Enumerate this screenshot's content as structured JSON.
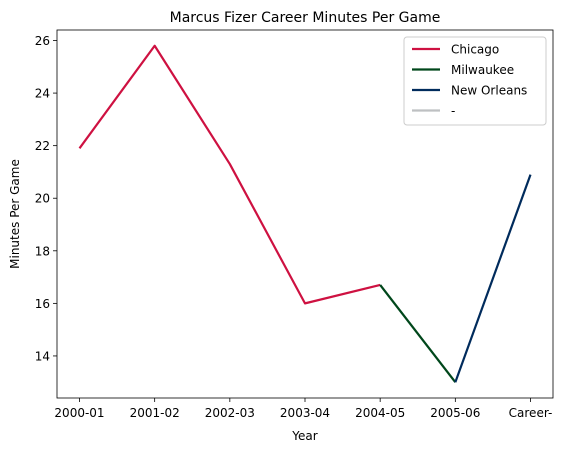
{
  "chart_data": {
    "type": "line",
    "title": "Marcus Fizer Career Minutes Per Game",
    "xlabel": "Year",
    "ylabel": "Minutes Per Game",
    "categories": [
      "2000-01",
      "2001-02",
      "2002-03",
      "2003-04",
      "2004-05",
      "2005-06",
      "Career-"
    ],
    "ylim": [
      12.4,
      26.4
    ],
    "yticks": [
      14,
      16,
      18,
      20,
      22,
      24,
      26
    ],
    "grid": false,
    "legend_position": "top-right",
    "series": [
      {
        "name": "Chicago",
        "color": "#CE1141",
        "points": [
          [
            0,
            21.9
          ],
          [
            1,
            25.8
          ],
          [
            2,
            21.3
          ],
          [
            3,
            16.0
          ],
          [
            4,
            16.7
          ]
        ]
      },
      {
        "name": "Milwaukee",
        "color": "#00471B",
        "points": [
          [
            4,
            16.7
          ],
          [
            5,
            13.0
          ]
        ]
      },
      {
        "name": "New Orleans",
        "color": "#002B5C",
        "points": [
          [
            5,
            13.0
          ],
          [
            6,
            20.9
          ]
        ]
      },
      {
        "name": "-",
        "color": "#BEC0C2",
        "points": []
      }
    ]
  }
}
